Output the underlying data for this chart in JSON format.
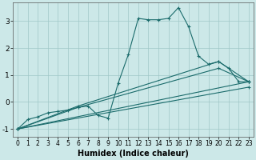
{
  "bg_color": "#cce8e8",
  "line_color": "#1a6b6b",
  "grid_color": "#a0c8c8",
  "xlabel": "Humidex (Indice chaleur)",
  "xlabel_fontsize": 7,
  "yticks": [
    -1,
    0,
    1,
    2,
    3
  ],
  "xlim": [
    -0.5,
    23.5
  ],
  "ylim": [
    -1.3,
    3.7
  ],
  "series": [
    {
      "x": [
        0,
        1,
        2,
        3,
        4,
        5,
        6,
        7,
        8,
        9,
        10,
        11,
        12,
        13,
        14,
        15,
        16,
        17,
        18,
        19,
        20,
        21,
        22,
        23
      ],
      "y": [
        -1.0,
        -0.65,
        -0.55,
        -0.4,
        -0.35,
        -0.3,
        -0.2,
        -0.15,
        -0.5,
        -0.6,
        0.7,
        1.75,
        3.1,
        3.05,
        3.05,
        3.1,
        3.5,
        2.8,
        1.7,
        1.4,
        1.5,
        1.25,
        0.75,
        0.75
      ]
    },
    {
      "x": [
        0,
        6,
        20,
        23
      ],
      "y": [
        -1.0,
        -0.15,
        1.5,
        0.75
      ]
    },
    {
      "x": [
        0,
        6,
        20,
        23
      ],
      "y": [
        -1.0,
        -0.2,
        1.25,
        0.75
      ]
    },
    {
      "x": [
        0,
        23
      ],
      "y": [
        -1.0,
        0.75
      ]
    },
    {
      "x": [
        0,
        23
      ],
      "y": [
        -1.0,
        0.55
      ]
    }
  ]
}
